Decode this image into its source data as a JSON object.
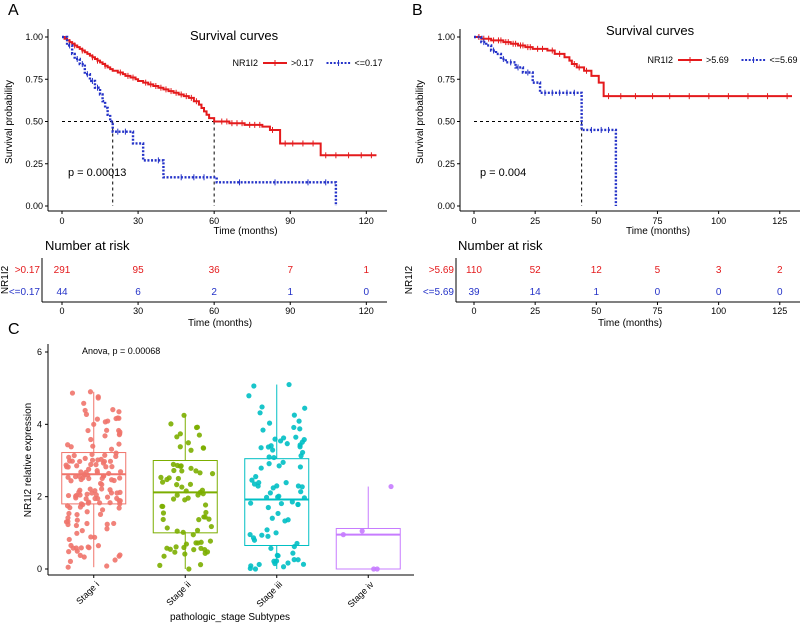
{
  "chart_data": [
    {
      "panel": "A",
      "type": "line",
      "kind": "kaplan-meier",
      "title": "Survival curves",
      "xlabel": "Time (months)",
      "ylabel": "Survival probability",
      "xlim": [
        0,
        125
      ],
      "ylim": [
        0,
        1
      ],
      "xticks": [
        0,
        30,
        60,
        90,
        120
      ],
      "yticks": [
        "0.00",
        "0.25",
        "0.50",
        "0.75",
        "1.00"
      ],
      "legend_title": "NR1I2",
      "pvalue": "p = 0.00013",
      "median_lines": [
        {
          "x": 20,
          "y": 0.5
        },
        {
          "x": 60,
          "y": 0.5
        }
      ],
      "series": [
        {
          "name": ">0.17",
          "color": "#e41a1c",
          "style": "solid",
          "steps": [
            [
              0,
              1.0
            ],
            [
              1,
              0.99
            ],
            [
              2,
              0.98
            ],
            [
              3,
              0.97
            ],
            [
              4,
              0.96
            ],
            [
              5,
              0.95
            ],
            [
              6,
              0.94
            ],
            [
              7,
              0.93
            ],
            [
              8,
              0.92
            ],
            [
              9,
              0.91
            ],
            [
              10,
              0.9
            ],
            [
              11,
              0.89
            ],
            [
              12,
              0.88
            ],
            [
              13,
              0.87
            ],
            [
              14,
              0.86
            ],
            [
              15,
              0.85
            ],
            [
              16,
              0.84
            ],
            [
              17,
              0.83
            ],
            [
              18,
              0.82
            ],
            [
              19,
              0.81
            ],
            [
              20,
              0.8
            ],
            [
              22,
              0.79
            ],
            [
              24,
              0.78
            ],
            [
              25,
              0.77
            ],
            [
              27,
              0.76
            ],
            [
              29,
              0.75
            ],
            [
              30,
              0.74
            ],
            [
              32,
              0.73
            ],
            [
              34,
              0.72
            ],
            [
              36,
              0.71
            ],
            [
              38,
              0.7
            ],
            [
              40,
              0.69
            ],
            [
              42,
              0.68
            ],
            [
              44,
              0.67
            ],
            [
              46,
              0.66
            ],
            [
              48,
              0.65
            ],
            [
              50,
              0.64
            ],
            [
              52,
              0.62
            ],
            [
              54,
              0.6
            ],
            [
              55,
              0.58
            ],
            [
              56,
              0.56
            ],
            [
              57,
              0.54
            ],
            [
              58,
              0.52
            ],
            [
              60,
              0.5
            ],
            [
              66,
              0.49
            ],
            [
              72,
              0.48
            ],
            [
              79,
              0.47
            ],
            [
              82,
              0.45
            ],
            [
              86,
              0.37
            ],
            [
              102,
              0.3
            ],
            [
              124,
              0.3
            ]
          ],
          "censor_times": [
            3,
            5,
            8,
            12,
            14,
            17,
            23,
            26,
            28,
            33,
            35,
            37,
            39,
            41,
            43,
            45,
            47,
            49,
            51,
            53,
            63,
            65,
            67,
            69,
            71,
            74,
            76,
            78,
            83,
            88,
            91,
            95,
            99,
            104,
            108,
            113,
            118,
            122
          ]
        },
        {
          "name": "<=0.17",
          "color": "#2533c8",
          "style": "dotted",
          "steps": [
            [
              0,
              1.0
            ],
            [
              2,
              0.95
            ],
            [
              4,
              0.9
            ],
            [
              5,
              0.87
            ],
            [
              7,
              0.84
            ],
            [
              9,
              0.78
            ],
            [
              11,
              0.74
            ],
            [
              13,
              0.7
            ],
            [
              15,
              0.66
            ],
            [
              16,
              0.62
            ],
            [
              17,
              0.58
            ],
            [
              18,
              0.54
            ],
            [
              19,
              0.5
            ],
            [
              20,
              0.44
            ],
            [
              28,
              0.37
            ],
            [
              32,
              0.27
            ],
            [
              40,
              0.17
            ],
            [
              61,
              0.14
            ],
            [
              108,
              0.0
            ]
          ],
          "censor_times": [
            3,
            6,
            8,
            10,
            12,
            14,
            22,
            25,
            38,
            47,
            52,
            56,
            70,
            84,
            97,
            104
          ]
        }
      ],
      "risk_table": {
        "title": "Number at risk",
        "strata_label": "NR1I2",
        "xlabel": "Time (months)",
        "times": [
          0,
          30,
          60,
          90,
          120
        ],
        "rows": [
          {
            "label": ">0.17",
            "color": "#e41a1c",
            "values": [
              "291",
              "95",
              "36",
              "7",
              "1"
            ]
          },
          {
            "label": "<=0.17",
            "color": "#2533c8",
            "values": [
              "44",
              "6",
              "2",
              "1",
              "0"
            ]
          }
        ]
      }
    },
    {
      "panel": "B",
      "type": "line",
      "kind": "kaplan-meier",
      "title": "Survival curves",
      "xlabel": "Time (months)",
      "ylabel": "Survival probability",
      "xlim": [
        0,
        130
      ],
      "ylim": [
        0,
        1
      ],
      "xticks": [
        0,
        25,
        50,
        75,
        100,
        125
      ],
      "yticks": [
        "0.00",
        "0.25",
        "0.50",
        "0.75",
        "1.00"
      ],
      "legend_title": "NR1I2",
      "pvalue": "p = 0.004",
      "median_lines": [
        {
          "x": 44,
          "y": 0.5
        }
      ],
      "series": [
        {
          "name": ">5.69",
          "color": "#e41a1c",
          "style": "solid",
          "steps": [
            [
              0,
              1.0
            ],
            [
              3,
              0.99
            ],
            [
              7,
              0.98
            ],
            [
              12,
              0.97
            ],
            [
              15,
              0.96
            ],
            [
              18,
              0.95
            ],
            [
              21,
              0.94
            ],
            [
              24,
              0.93
            ],
            [
              30,
              0.92
            ],
            [
              33,
              0.9
            ],
            [
              37,
              0.88
            ],
            [
              39,
              0.86
            ],
            [
              40,
              0.84
            ],
            [
              42,
              0.82
            ],
            [
              45,
              0.8
            ],
            [
              48,
              0.77
            ],
            [
              51,
              0.73
            ],
            [
              53,
              0.65
            ],
            [
              130,
              0.65
            ]
          ],
          "censor_times": [
            2,
            4,
            6,
            8,
            10,
            11,
            13,
            14,
            16,
            17,
            19,
            20,
            22,
            23,
            26,
            28,
            32,
            35,
            41,
            43,
            46,
            55,
            60,
            66,
            73,
            80,
            88,
            96,
            104,
            112,
            120,
            128
          ]
        },
        {
          "name": "<=5.69",
          "color": "#2533c8",
          "style": "dotted",
          "steps": [
            [
              0,
              1.0
            ],
            [
              3,
              0.97
            ],
            [
              5,
              0.95
            ],
            [
              7,
              0.92
            ],
            [
              9,
              0.9
            ],
            [
              11,
              0.87
            ],
            [
              13,
              0.85
            ],
            [
              17,
              0.82
            ],
            [
              20,
              0.79
            ],
            [
              24,
              0.73
            ],
            [
              27,
              0.67
            ],
            [
              44,
              0.45
            ],
            [
              58,
              0.0
            ]
          ],
          "censor_times": [
            4,
            8,
            12,
            15,
            18,
            22,
            29,
            32,
            35,
            38,
            41,
            48,
            52,
            55
          ]
        }
      ],
      "risk_table": {
        "title": "Number at risk",
        "strata_label": "NR1I2",
        "xlabel": "Time (months)",
        "times": [
          0,
          25,
          50,
          75,
          100,
          125
        ],
        "rows": [
          {
            "label": ">5.69",
            "color": "#e41a1c",
            "values": [
              "110",
              "52",
              "12",
              "5",
              "3",
              "2"
            ]
          },
          {
            "label": "<=5.69",
            "color": "#2533c8",
            "values": [
              "39",
              "14",
              "1",
              "0",
              "0",
              "0"
            ]
          }
        ]
      }
    },
    {
      "panel": "C",
      "type": "box",
      "title": "",
      "annotation": "Anova, p = 0.00068",
      "xlabel": "pathologic_stage Subtypes",
      "ylabel": "NR1I2 relative expression",
      "ylim": [
        0,
        6
      ],
      "yticks": [
        0,
        2,
        4,
        6
      ],
      "categories": [
        "Stage i",
        "Stage ii",
        "Stage iii",
        "Stage iv"
      ],
      "series": [
        {
          "name": "Stage i",
          "color": "#f0746b",
          "n": 150,
          "min": 0.05,
          "q1": 1.8,
          "median": 2.62,
          "q3": 3.22,
          "max": 4.9
        },
        {
          "name": "Stage ii",
          "color": "#7cae00",
          "n": 75,
          "min": 0.0,
          "q1": 1.0,
          "median": 2.12,
          "q3": 3.0,
          "max": 4.25
        },
        {
          "name": "Stage iii",
          "color": "#00bfc4",
          "n": 85,
          "min": 0.0,
          "q1": 0.65,
          "median": 1.92,
          "q3": 3.05,
          "max": 5.1
        },
        {
          "name": "Stage iv",
          "color": "#c77cff",
          "n": 5,
          "min": 0.0,
          "q1": 0.0,
          "median": 0.95,
          "q3": 1.12,
          "max": 2.28,
          "points": [
            0.0,
            0.0,
            0.95,
            1.05,
            2.28
          ]
        }
      ]
    }
  ]
}
